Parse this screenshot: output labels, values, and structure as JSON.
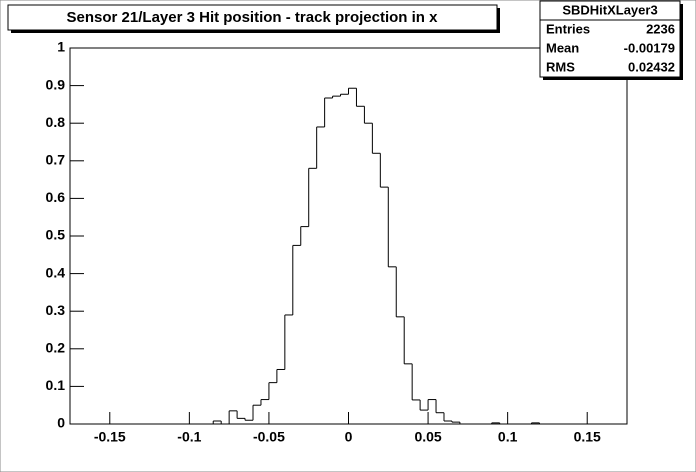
{
  "chart_data": {
    "type": "histogram",
    "title": "Sensor 21/Layer 3 Hit position - track projection in x",
    "bins": [
      -0.175,
      -0.17,
      -0.165,
      -0.16,
      -0.155,
      -0.15,
      -0.145,
      -0.14,
      -0.135,
      -0.13,
      -0.125,
      -0.12,
      -0.115,
      -0.11,
      -0.105,
      -0.1,
      -0.095,
      -0.09,
      -0.085,
      -0.08,
      -0.075,
      -0.07,
      -0.065,
      -0.06,
      -0.055,
      -0.05,
      -0.045,
      -0.04,
      -0.035,
      -0.03,
      -0.025,
      -0.02,
      -0.015,
      -0.01,
      -0.005,
      0,
      0.005,
      0.01,
      0.015,
      0.02,
      0.025,
      0.03,
      0.035,
      0.04,
      0.045,
      0.05,
      0.055,
      0.06,
      0.065,
      0.07,
      0.075,
      0.08,
      0.085,
      0.09,
      0.095,
      0.1,
      0.105,
      0.11,
      0.115,
      0.12,
      0.125,
      0.13,
      0.135,
      0.14,
      0.145,
      0.15,
      0.155,
      0.16,
      0.165,
      0.17,
      0.175
    ],
    "counts": [
      0,
      0,
      0,
      0,
      0,
      0,
      0,
      0,
      0,
      0,
      0,
      0,
      0,
      0,
      0,
      0,
      0,
      0,
      0.008,
      0,
      0.035,
      0.015,
      0.01,
      0.05,
      0.065,
      0.11,
      0.145,
      0.29,
      0.475,
      0.525,
      0.68,
      0.79,
      0.867,
      0.872,
      0.877,
      0.893,
      0.845,
      0.8,
      0.72,
      0.63,
      0.418,
      0.285,
      0.16,
      0.064,
      0.037,
      0.065,
      0.03,
      0.008,
      0.005,
      0,
      0,
      0,
      0,
      0.003,
      0,
      0,
      0,
      0,
      0.003,
      0,
      0,
      0,
      0,
      0,
      0,
      0,
      0,
      0,
      0,
      0
    ],
    "color": "#000000",
    "xlim": [
      -0.175,
      0.175
    ],
    "ylim": [
      0,
      1
    ],
    "xticks": [
      -0.15,
      -0.1,
      -0.05,
      0,
      0.05,
      0.1,
      0.15
    ],
    "yticks": [
      0,
      0.1,
      0.2,
      0.3,
      0.4,
      0.5,
      0.6,
      0.7,
      0.8,
      0.9,
      1
    ],
    "stats": {
      "name": "SBDHitXLayer3",
      "rows": [
        {
          "label": "Entries",
          "value": 2236
        },
        {
          "label": "Mean",
          "value": -0.00179
        },
        {
          "label": "RMS",
          "value": 0.02432
        }
      ]
    }
  }
}
